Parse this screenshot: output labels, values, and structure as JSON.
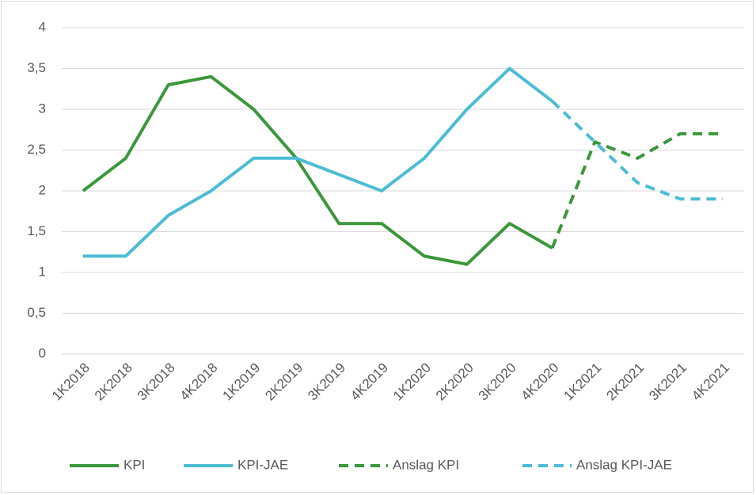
{
  "chart_data": {
    "type": "line",
    "categories": [
      "1K2018",
      "2K2018",
      "3K2018",
      "4K2018",
      "1K2019",
      "2K2019",
      "3K2019",
      "4K2019",
      "1K2020",
      "2K2020",
      "3K2020",
      "4K2020",
      "1K2021",
      "2K2021",
      "3K2021",
      "4K2021"
    ],
    "series": [
      {
        "name": "KPI",
        "color": "#3b973b",
        "dashed": false,
        "values": [
          2,
          2.4,
          3.3,
          3.4,
          3.0,
          2.4,
          1.6,
          1.6,
          1.2,
          1.1,
          1.6,
          1.3,
          null,
          null,
          null,
          null
        ]
      },
      {
        "name": "KPI-JAE",
        "color": "#4bbdd3",
        "dashed": false,
        "values": [
          1.2,
          1.2,
          1.7,
          2.0,
          2.4,
          2.4,
          2.2,
          2.0,
          2.4,
          3.0,
          3.5,
          3.1,
          null,
          null,
          null,
          null
        ]
      },
      {
        "name": "Anslag KPI",
        "color": "#3b973b",
        "dashed": true,
        "values": [
          null,
          null,
          null,
          null,
          null,
          null,
          null,
          null,
          null,
          null,
          null,
          1.3,
          2.6,
          2.4,
          2.7,
          2.7
        ]
      },
      {
        "name": "Anslag KPI-JAE",
        "color": "#4bbdd3",
        "dashed": true,
        "values": [
          null,
          null,
          null,
          null,
          null,
          null,
          null,
          null,
          null,
          null,
          null,
          3.1,
          2.6,
          2.1,
          1.9,
          1.9
        ]
      }
    ],
    "ylim": [
      0,
      4
    ],
    "yticks": [
      0,
      {
        "value": 0.5,
        "label": "0,5"
      },
      1,
      {
        "value": 1.5,
        "label": "1,5"
      },
      2,
      {
        "value": 2.5,
        "label": "2,5"
      },
      3,
      {
        "value": 3.5,
        "label": "3,5"
      },
      4
    ],
    "grid": true,
    "legend": "bottom"
  }
}
